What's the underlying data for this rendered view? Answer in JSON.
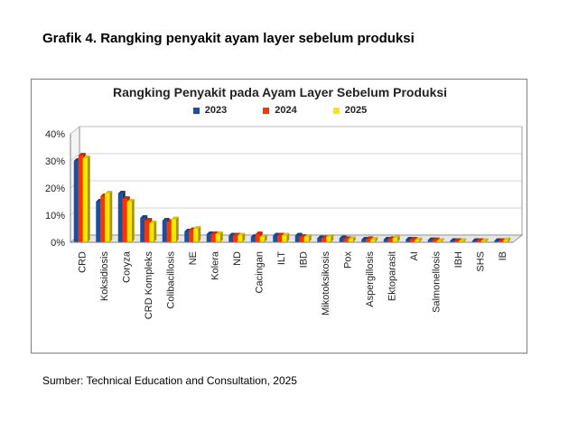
{
  "caption": "Grafik 4. Rangking penyakit ayam layer sebelum produksi",
  "source": "Sumber: Technical Education and Consultation, 2025",
  "colors": {
    "series_2023": "#1f4e9a",
    "series_2024": "#ff3300",
    "series_2025": "#ffe600",
    "gridline": "#c8c8c8",
    "axis": "#808080"
  },
  "chart_data": {
    "type": "bar",
    "title": "Rangking Penyakit pada Ayam Layer Sebelum Produksi",
    "xlabel": "",
    "ylabel": "",
    "ylim": [
      0,
      40
    ],
    "y_ticks": [
      "0%",
      "10%",
      "20%",
      "30%",
      "40%"
    ],
    "y_unit": "%",
    "grid": true,
    "legend_position": "top",
    "categories": [
      "CRD",
      "Koksidiosis",
      "Coryza",
      "CRD Kompleks",
      "Colibacillosis",
      "NE",
      "Kolera",
      "ND",
      "Cacingan",
      "ILT",
      "IBD",
      "Mikotoksikosis",
      "Pox",
      "Aspergillosis",
      "Ektoparasit",
      "AI",
      "Salmonellosis",
      "IBH",
      "SHS",
      "IB"
    ],
    "series": [
      {
        "name": "2023",
        "values": [
          30,
          15,
          18,
          9,
          8,
          4,
          3,
          2.5,
          2,
          2.5,
          2.5,
          1.5,
          1.5,
          1,
          1,
          1,
          0.8,
          0.5,
          0.5,
          0.5
        ]
      },
      {
        "name": "2024",
        "values": [
          32,
          17,
          16,
          8,
          7.5,
          4.5,
          3,
          2.5,
          3,
          2.5,
          2,
          1.5,
          1.2,
          1.2,
          1.2,
          1,
          0.8,
          0.5,
          0.5,
          0.5
        ]
      },
      {
        "name": "2025",
        "values": [
          31,
          18,
          15,
          7,
          8.5,
          5,
          3,
          2.5,
          2,
          2.5,
          2,
          2,
          1.2,
          1,
          1.5,
          0.8,
          0.5,
          0.5,
          0.5,
          0.8
        ]
      }
    ]
  }
}
